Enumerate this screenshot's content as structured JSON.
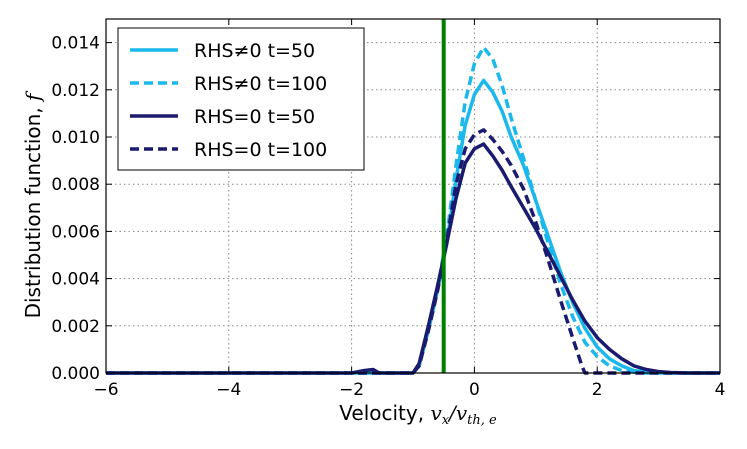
{
  "chart_data": {
    "type": "line",
    "xlabel_prefix": "Velocity, ",
    "xlabel_math": "v",
    "xlabel_math_sub": "x",
    "xlabel_math_div": "/v",
    "xlabel_math_sub2": "th, e",
    "ylabel_prefix": "Distribution function, ",
    "ylabel_math": "f",
    "xlim": [
      -6,
      4
    ],
    "ylim": [
      0,
      0.015
    ],
    "xticks": [
      -6,
      -4,
      -2,
      0,
      2,
      4
    ],
    "xtick_labels": [
      "−6",
      "−4",
      "−2",
      "0",
      "2",
      "4"
    ],
    "yticks": [
      0.0,
      0.002,
      0.004,
      0.006,
      0.008,
      0.01,
      0.012,
      0.014
    ],
    "ytick_labels": [
      "0.000",
      "0.002",
      "0.004",
      "0.006",
      "0.008",
      "0.010",
      "0.012",
      "0.014"
    ],
    "grid": true,
    "legend_position": "top-left",
    "vline": {
      "x": -0.5,
      "color": "#008000"
    },
    "series": [
      {
        "name": "RHS≠0 t=50",
        "color": "#1ab8ec",
        "style": "solid",
        "x": [
          -6,
          -2,
          -1.0,
          -0.9,
          -0.75,
          -0.6,
          -0.45,
          -0.3,
          -0.15,
          0.0,
          0.15,
          0.3,
          0.45,
          0.6,
          0.8,
          1.0,
          1.2,
          1.4,
          1.6,
          1.8,
          2.0,
          2.2,
          2.4,
          2.6,
          2.8,
          3.0,
          3.2,
          3.5,
          4.0
        ],
        "y": [
          0,
          0,
          0,
          0.0003,
          0.0018,
          0.0035,
          0.0055,
          0.0082,
          0.0105,
          0.0118,
          0.0124,
          0.0119,
          0.0111,
          0.01,
          0.0088,
          0.0073,
          0.0058,
          0.0043,
          0.003,
          0.0019,
          0.0011,
          0.0006,
          0.0003,
          0.0001,
          5e-05,
          2e-05,
          0,
          0,
          0
        ]
      },
      {
        "name": "RHS≠0 t=100",
        "color": "#1ab8ec",
        "style": "dashed",
        "x": [
          -6,
          -2,
          -1.0,
          -0.9,
          -0.75,
          -0.6,
          -0.45,
          -0.3,
          -0.15,
          0.0,
          0.15,
          0.3,
          0.45,
          0.6,
          0.8,
          1.0,
          1.2,
          1.4,
          1.6,
          1.8,
          2.0,
          2.2,
          2.4,
          2.6,
          2.8,
          3.0,
          3.5,
          4.0
        ],
        "y": [
          0,
          0,
          0,
          0.0003,
          0.0018,
          0.0036,
          0.0058,
          0.0088,
          0.0115,
          0.0131,
          0.0138,
          0.0133,
          0.0122,
          0.0108,
          0.0091,
          0.0073,
          0.0055,
          0.0038,
          0.0024,
          0.0013,
          0.0007,
          0.0003,
          0.0001,
          4e-05,
          0,
          0,
          0,
          0
        ]
      },
      {
        "name": "RHS=0 t=50",
        "color": "#1a1a6e",
        "style": "solid",
        "x": [
          -6,
          -2.0,
          -1.8,
          -1.65,
          -1.55,
          -1.3,
          -1.0,
          -0.9,
          -0.75,
          -0.6,
          -0.45,
          -0.3,
          -0.15,
          0.0,
          0.15,
          0.3,
          0.45,
          0.6,
          0.8,
          1.0,
          1.2,
          1.4,
          1.6,
          1.8,
          2.0,
          2.2,
          2.4,
          2.6,
          2.8,
          3.0,
          3.2,
          3.5,
          4.0
        ],
        "y": [
          0,
          0,
          0.0001,
          0.00015,
          0,
          0,
          0,
          0.0004,
          0.002,
          0.0037,
          0.0055,
          0.0074,
          0.0089,
          0.0095,
          0.0097,
          0.0092,
          0.0086,
          0.0079,
          0.007,
          0.0061,
          0.0051,
          0.0041,
          0.0031,
          0.0022,
          0.0015,
          0.001,
          0.0006,
          0.0003,
          0.00015,
          6e-05,
          2e-05,
          0,
          0
        ]
      },
      {
        "name": "RHS=0 t=100",
        "color": "#1a1a6e",
        "style": "dashed",
        "x": [
          -6,
          -2,
          -1.0,
          -0.9,
          -0.75,
          -0.6,
          -0.45,
          -0.3,
          -0.15,
          0.0,
          0.15,
          0.3,
          0.45,
          0.6,
          0.8,
          1.0,
          1.2,
          1.4,
          1.6,
          1.75,
          1.8,
          2.0,
          3.0,
          4.0
        ],
        "y": [
          0,
          0,
          0,
          0.0003,
          0.0018,
          0.0035,
          0.0056,
          0.008,
          0.0095,
          0.0101,
          0.0103,
          0.0099,
          0.0094,
          0.0088,
          0.0078,
          0.0064,
          0.0048,
          0.0031,
          0.0015,
          0.0003,
          0,
          0,
          0,
          0
        ]
      }
    ]
  }
}
